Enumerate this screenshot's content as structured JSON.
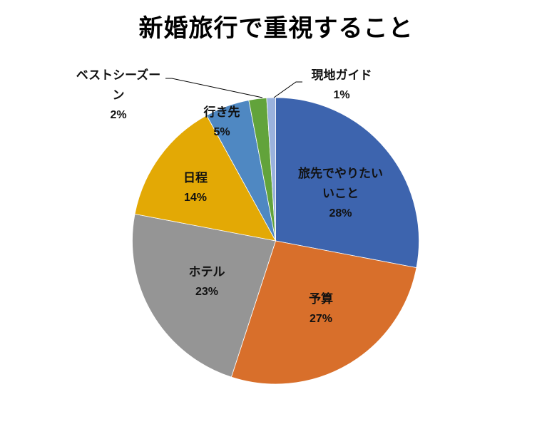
{
  "chart_data": {
    "type": "pie",
    "title": "新婚旅行で重視すること",
    "start_angle_deg": 0,
    "direction": "clockwise",
    "categories": [
      "旅先でやりたいこと",
      "予算",
      "ホテル",
      "日程",
      "行き先",
      "ベストシーズン",
      "現地ガイド"
    ],
    "values": [
      28,
      27,
      23,
      14,
      5,
      2,
      1
    ],
    "unit": "%",
    "colors": [
      "#3D64AE",
      "#D86F2B",
      "#959595",
      "#E3A905",
      "#4F88C2",
      "#62A33B",
      "#9AB2DD"
    ],
    "legend": "none",
    "data_labels": [
      {
        "name_lines": [
          "旅先でやりたい",
          "いこと"
        ],
        "pct": "28%"
      },
      {
        "name_lines": [
          "予算"
        ],
        "pct": "27%"
      },
      {
        "name_lines": [
          "ホテル"
        ],
        "pct": "23%"
      },
      {
        "name_lines": [
          "日程"
        ],
        "pct": "14%"
      },
      {
        "name_lines": [
          "行き先"
        ],
        "pct": "5%"
      },
      {
        "name_lines": [
          "ベストシーズー",
          "ン"
        ],
        "pct": "2%"
      },
      {
        "name_lines": [
          "現地ガイド"
        ],
        "pct": "1%"
      }
    ]
  },
  "labels": {
    "title": "新婚旅行で重視すること",
    "travel_activities": {
      "line1": "旅先でやりたい",
      "line2": "いこと",
      "pct": "28%"
    },
    "budget": {
      "name": "予算",
      "pct": "27%"
    },
    "hotel": {
      "name": "ホテル",
      "pct": "23%"
    },
    "schedule": {
      "name": "日程",
      "pct": "14%"
    },
    "destination": {
      "name": "行き先",
      "pct": "5%"
    },
    "best_season": {
      "line1": "ベストシーズー",
      "line2": "ン",
      "pct": "2%"
    },
    "local_guide": {
      "name": "現地ガイド",
      "pct": "1%"
    }
  }
}
